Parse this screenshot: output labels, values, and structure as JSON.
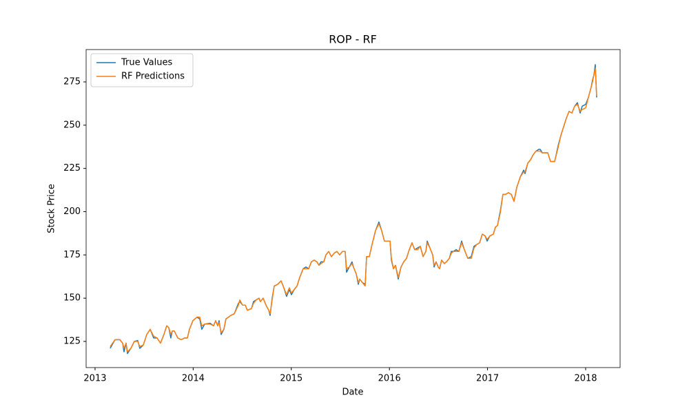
{
  "chart_data": {
    "type": "line",
    "title": "ROP - RF",
    "x_label": "Date",
    "y_label": "Stock Price",
    "x": [
      2013.154,
      2013.204,
      2013.253,
      2013.281,
      2013.295,
      2013.316,
      2013.33,
      2013.365,
      2013.4,
      2013.435,
      2013.456,
      2013.492,
      2013.527,
      2013.562,
      2013.597,
      2013.632,
      2013.667,
      2013.702,
      2013.73,
      2013.751,
      2013.772,
      2013.787,
      2013.808,
      2013.843,
      2013.878,
      2013.913,
      2013.941,
      2013.962,
      2013.997,
      2014.039,
      2014.067,
      2014.088,
      2014.117,
      2014.173,
      2014.208,
      2014.229,
      2014.25,
      2014.264,
      2014.285,
      2014.313,
      2014.334,
      2014.383,
      2014.419,
      2014.461,
      2014.475,
      2014.503,
      2014.531,
      2014.552,
      2014.594,
      2014.615,
      2014.643,
      2014.671,
      2014.685,
      2014.713,
      2014.742,
      2014.77,
      2014.784,
      2014.805,
      2014.826,
      2014.861,
      2014.896,
      2014.924,
      2014.952,
      2014.98,
      2015.001,
      2015.03,
      2015.058,
      2015.086,
      2015.121,
      2015.149,
      2015.177,
      2015.205,
      2015.233,
      2015.261,
      2015.282,
      2015.303,
      2015.331,
      2015.353,
      2015.381,
      2015.409,
      2015.437,
      2015.465,
      2015.493,
      2015.521,
      2015.549,
      2015.563,
      2015.591,
      2015.619,
      2015.633,
      2015.662,
      2015.683,
      2015.697,
      2015.725,
      2015.753,
      2015.767,
      2015.795,
      2015.823,
      2015.858,
      2015.893,
      2015.921,
      2015.949,
      2015.978,
      2016.006,
      2016.02,
      2016.041,
      2016.062,
      2016.09,
      2016.118,
      2016.146,
      2016.174,
      2016.202,
      2016.23,
      2016.258,
      2016.287,
      2016.315,
      2016.343,
      2016.371,
      2016.385,
      2016.413,
      2016.441,
      2016.455,
      2016.476,
      2016.497,
      2016.511,
      2016.532,
      2016.56,
      2016.581,
      2016.61,
      2016.631,
      2016.652,
      2016.68,
      2016.708,
      2016.736,
      2016.764,
      2016.799,
      2016.834,
      2016.862,
      2016.89,
      2016.919,
      2016.947,
      2016.975,
      2016.996,
      2017.024,
      2017.059,
      2017.08,
      2017.101,
      2017.129,
      2017.157,
      2017.185,
      2017.213,
      2017.242,
      2017.27,
      2017.298,
      2017.333,
      2017.368,
      2017.382,
      2017.41,
      2017.438,
      2017.466,
      2017.494,
      2017.522,
      2017.537,
      2017.558,
      2017.586,
      2017.614,
      2017.642,
      2017.684,
      2017.719,
      2017.747,
      2017.775,
      2017.803,
      2017.831,
      2017.86,
      2017.888,
      2017.916,
      2017.944,
      2017.965,
      2018.0,
      2018.028,
      2018.056,
      2018.07,
      2018.084,
      2018.098,
      2018.112
    ],
    "series": [
      {
        "name": "True Values",
        "color": "#1f77b4",
        "values": [
          121,
          126,
          126,
          124,
          119,
          124,
          118,
          121,
          125,
          125.5,
          121,
          123,
          129,
          132,
          127,
          127,
          124,
          129,
          134,
          133,
          127,
          131,
          131,
          127,
          126,
          127,
          127,
          132,
          137,
          139,
          138,
          132,
          135,
          135.5,
          134,
          137,
          134,
          137,
          129,
          132,
          138,
          140,
          141,
          147,
          148,
          146,
          146,
          143,
          144,
          148,
          149,
          150,
          148,
          150,
          146,
          143,
          140,
          150,
          157,
          158,
          160,
          156,
          151,
          155,
          152,
          155,
          157,
          162,
          167,
          168,
          167,
          171,
          172,
          171,
          169,
          171,
          171,
          175,
          177,
          174,
          176,
          177,
          175,
          177,
          177,
          165,
          168,
          171,
          168,
          164,
          158,
          161,
          159,
          158,
          174,
          174,
          181,
          189,
          194,
          189,
          183,
          183,
          183,
          172,
          167,
          169,
          161,
          168,
          171,
          173,
          178,
          182,
          178,
          179,
          180,
          174,
          177,
          183,
          179,
          175,
          168,
          171,
          168,
          167,
          172,
          170,
          171,
          173,
          177,
          177,
          178,
          177,
          183,
          178,
          173,
          174,
          180,
          181,
          182,
          187,
          186,
          183,
          186,
          187,
          191,
          192,
          200,
          210,
          210,
          211,
          210,
          206,
          214,
          220,
          224,
          222,
          228,
          230,
          233,
          235,
          236,
          236,
          234,
          234,
          234,
          229,
          229,
          238,
          244,
          249,
          254,
          258,
          257,
          261,
          263,
          257,
          261,
          262,
          266,
          272,
          276,
          279,
          285,
          266
        ]
      },
      {
        "name": "RF Predictions",
        "color": "#ff7f0e",
        "values": [
          122,
          126,
          126,
          124,
          121,
          124,
          119,
          121,
          125,
          125,
          122,
          123,
          129,
          132,
          128,
          127,
          124,
          129,
          134,
          133,
          129,
          131,
          131,
          127,
          126,
          127,
          127,
          132,
          137,
          139,
          139,
          134,
          135,
          135,
          134,
          137,
          134,
          136,
          130,
          132,
          138,
          140,
          141,
          146,
          149,
          146,
          146,
          143,
          144,
          147,
          149,
          150,
          148,
          150,
          146,
          143,
          141,
          149,
          157,
          158,
          160,
          156,
          152,
          156,
          153,
          155,
          157,
          162,
          167,
          167,
          167,
          171,
          172,
          171,
          169,
          170,
          171,
          175,
          177,
          174,
          176,
          177,
          175,
          177,
          177,
          167,
          168,
          170,
          168,
          164,
          159,
          161,
          159,
          157,
          174,
          174,
          181,
          189,
          193,
          189,
          183,
          183,
          183,
          173,
          167,
          169,
          162,
          168,
          171,
          173,
          178,
          182,
          178,
          178,
          180,
          174,
          177,
          182,
          179,
          175,
          169,
          171,
          168,
          167,
          172,
          170,
          171,
          173,
          176,
          177,
          177,
          177,
          182,
          178,
          173,
          173,
          179,
          181,
          182,
          187,
          186,
          184,
          186,
          187,
          191,
          192,
          199,
          210,
          210,
          211,
          210,
          206,
          214,
          220,
          223,
          223,
          228,
          230,
          233,
          235,
          235,
          235,
          234,
          234,
          234,
          229,
          229,
          237,
          244,
          249,
          254,
          258,
          257,
          261,
          262,
          258,
          259,
          260,
          266,
          272,
          275,
          279,
          283,
          267
        ]
      }
    ],
    "xlim": [
      2012.909,
      2018.351
    ],
    "xticks": [
      2013,
      2014,
      2015,
      2016,
      2017,
      2018
    ],
    "ylim": [
      109.88,
      293.7
    ],
    "yticks": [
      125,
      150,
      175,
      200,
      225,
      250,
      275
    ],
    "legend": "upper left",
    "grid": false
  }
}
